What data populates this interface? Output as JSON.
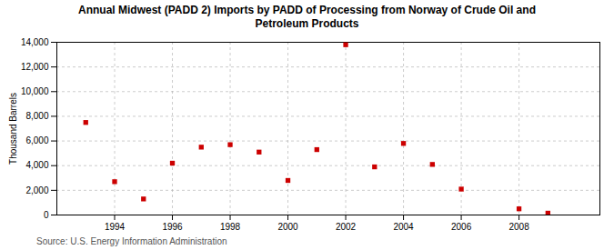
{
  "chart_data": {
    "type": "scatter",
    "title": "Annual Midwest (PADD 2) Imports by PADD of Processing from Norway of Crude Oil and\nPetroleum Products",
    "ylabel": "Thousand Barrels",
    "source": "Source: U.S. Energy Information Administration",
    "x": [
      1993,
      1994,
      1995,
      1996,
      1997,
      1998,
      1999,
      2000,
      2001,
      2002,
      2003,
      2004,
      2005,
      2006,
      2008,
      2009
    ],
    "values": [
      7500,
      2700,
      1300,
      4200,
      5500,
      5700,
      5100,
      2800,
      5300,
      13800,
      3900,
      5800,
      4100,
      2100,
      500,
      150
    ],
    "color": "#cc0000",
    "marker": "square",
    "xlim": [
      1992.0,
      2010.8
    ],
    "xticks": [
      1994,
      1996,
      1998,
      2000,
      2002,
      2004,
      2006,
      2008
    ],
    "ylim": [
      0,
      14000
    ],
    "yticks": [
      0,
      {
        "value": 2000,
        "label": "2,000"
      },
      {
        "value": 4000,
        "label": "4,000"
      },
      {
        "value": 6000,
        "label": "6,000"
      },
      {
        "value": 8000,
        "label": "8,000"
      },
      {
        "value": 10000,
        "label": "10,000"
      },
      {
        "value": 12000,
        "label": "12,000"
      },
      {
        "value": 14000,
        "label": "14,000"
      }
    ],
    "grid": true
  }
}
